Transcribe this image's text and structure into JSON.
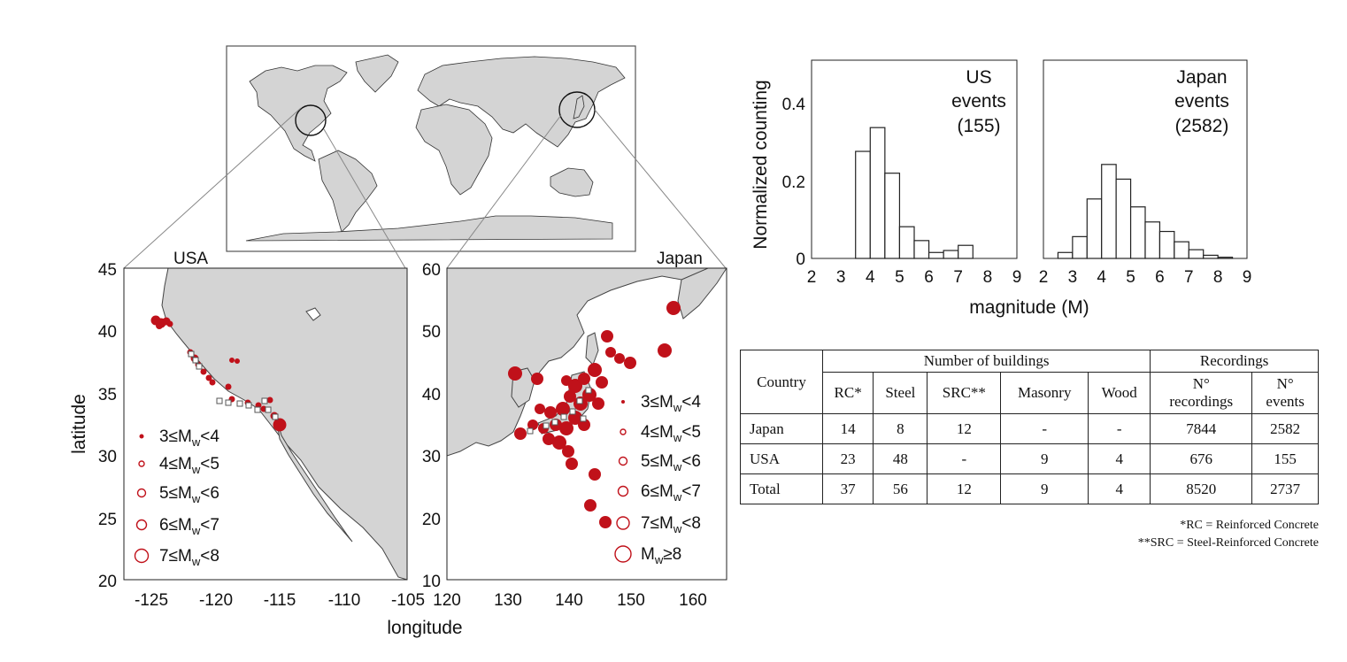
{
  "maps": {
    "usa": {
      "title": "USA",
      "x_ticks": [
        "-125",
        "-120",
        "-115",
        "-110",
        "-105"
      ],
      "y_ticks": [
        "45",
        "40",
        "35",
        "30",
        "25",
        "20"
      ],
      "xlabel": "longitude",
      "ylabel": "latitude",
      "legend": [
        {
          "lead": "3≤M",
          "sub": "w",
          "tail": "<4"
        },
        {
          "lead": "4≤M",
          "sub": "w",
          "tail": "<5"
        },
        {
          "lead": "5≤M",
          "sub": "w",
          "tail": "<6"
        },
        {
          "lead": "6≤M",
          "sub": "w",
          "tail": "<7"
        },
        {
          "lead": "7≤M",
          "sub": "w",
          "tail": "<8"
        }
      ]
    },
    "japan": {
      "title": "Japan",
      "x_ticks": [
        "120",
        "130",
        "140",
        "150",
        "160"
      ],
      "y_ticks": [
        "60",
        "50",
        "40",
        "30",
        "20",
        "10"
      ],
      "legend": [
        {
          "lead": "3≤M",
          "sub": "w",
          "tail": "<4"
        },
        {
          "lead": "4≤M",
          "sub": "w",
          "tail": "<5"
        },
        {
          "lead": "5≤M",
          "sub": "w",
          "tail": "<6"
        },
        {
          "lead": "6≤M",
          "sub": "w",
          "tail": "<7"
        },
        {
          "lead": "7≤M",
          "sub": "w",
          "tail": "<8"
        },
        {
          "lead": "M",
          "sub": "w",
          "tail": "≥8"
        }
      ]
    },
    "event_color": "#c0111a",
    "land_color": "#d4d4d4"
  },
  "chart_data": [
    {
      "type": "bar",
      "title": "US events (155)",
      "annotation_lines": [
        "US",
        "events",
        "(155)"
      ],
      "xlabel": "magnitude (M)",
      "ylabel": "Normalized counting",
      "xlim": [
        2,
        9
      ],
      "ylim": [
        0,
        0.5
      ],
      "x_ticks": [
        "2",
        "3",
        "4",
        "5",
        "6",
        "7",
        "8",
        "9"
      ],
      "y_ticks": [
        "0",
        "0.2",
        "0.4"
      ],
      "bin_width": 0.5,
      "bin_starts": [
        3.5,
        4.0,
        4.5,
        5.0,
        5.5,
        6.0,
        6.5,
        7.0,
        7.5
      ],
      "values": [
        0.27,
        0.33,
        0.215,
        0.08,
        0.045,
        0.015,
        0.02,
        0.033,
        0.0
      ]
    },
    {
      "type": "bar",
      "title": "Japan events (2582)",
      "annotation_lines": [
        "Japan",
        "events",
        "(2582)"
      ],
      "xlabel": "magnitude (M)",
      "xlim": [
        2,
        9
      ],
      "ylim": [
        0,
        0.5
      ],
      "x_ticks": [
        "2",
        "3",
        "4",
        "5",
        "6",
        "7",
        "8",
        "9"
      ],
      "bin_width": 0.5,
      "bin_starts": [
        2.5,
        3.0,
        3.5,
        4.0,
        4.5,
        5.0,
        5.5,
        6.0,
        6.5,
        7.0,
        7.5,
        8.0
      ],
      "values": [
        0.015,
        0.055,
        0.15,
        0.237,
        0.2,
        0.13,
        0.092,
        0.068,
        0.042,
        0.022,
        0.008,
        0.003
      ]
    }
  ],
  "table": {
    "header_country": "Country",
    "header_buildings": "Number of buildings",
    "header_recordings": "Recordings",
    "sub_headers": [
      "RC*",
      "Steel",
      "SRC**",
      "Masonry",
      "Wood"
    ],
    "rec_headers": [
      [
        "N°",
        "recordings"
      ],
      [
        "N°",
        "events"
      ]
    ],
    "rows": [
      [
        "Japan",
        "14",
        "8",
        "12",
        "-",
        "-",
        "7844",
        "2582"
      ],
      [
        "USA",
        "23",
        "48",
        "-",
        "9",
        "4",
        "676",
        "155"
      ],
      [
        "Total",
        "37",
        "56",
        "12",
        "9",
        "4",
        "8520",
        "2737"
      ]
    ],
    "notes": [
      "*RC = Reinforced Concrete",
      "**SRC = Steel-Reinforced Concrete"
    ]
  }
}
